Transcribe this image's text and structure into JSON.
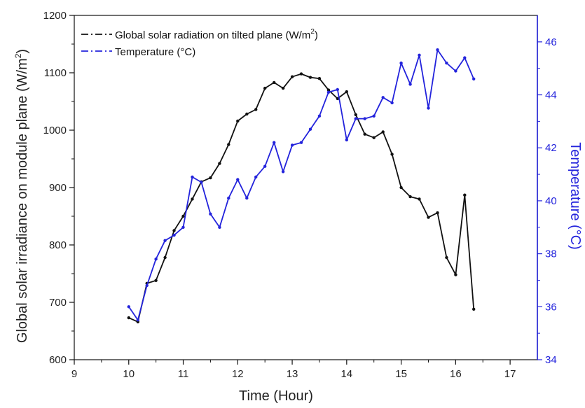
{
  "chart_data": {
    "type": "line",
    "title": "",
    "xlabel": "Time (Hour)",
    "ylabel_left": {
      "text": "Global solar irradiance on module plane (W/m",
      "sup": "2",
      "close": ")"
    },
    "ylabel_right": "Temperature (°C)",
    "xlim": [
      9,
      17.5
    ],
    "ylim_left": [
      600,
      1200
    ],
    "ylim_right": [
      34,
      47
    ],
    "x_ticks": [
      "9",
      "10",
      "11",
      "12",
      "13",
      "14",
      "15",
      "16",
      "17"
    ],
    "y_left_ticks": [
      "600",
      "700",
      "800",
      "900",
      "1000",
      "1100",
      "1200"
    ],
    "y_right_ticks": [
      "34",
      "36",
      "38",
      "40",
      "42",
      "44",
      "46"
    ],
    "grid": false,
    "legend_position": "top-left",
    "colors": {
      "irradiance": "#111111",
      "temperature": "#2323dc",
      "right_axis": "#2323dc",
      "left_axis": "#111111"
    },
    "series": [
      {
        "key": "irradiance",
        "name": "Global solar radiation on tilted plane (W/m",
        "name_sup": "2",
        "name_close": ")",
        "axis": "left",
        "x": [
          10.0,
          10.167,
          10.333,
          10.5,
          10.667,
          10.833,
          11.0,
          11.167,
          11.333,
          11.5,
          11.667,
          11.833,
          12.0,
          12.167,
          12.333,
          12.5,
          12.667,
          12.833,
          13.0,
          13.167,
          13.333,
          13.5,
          13.667,
          13.833,
          14.0,
          14.167,
          14.333,
          14.5,
          14.667,
          14.833,
          15.0,
          15.167,
          15.333,
          15.5,
          15.667,
          15.833,
          16.0,
          16.167,
          16.333
        ],
        "y": [
          673,
          666,
          733,
          738,
          778,
          825,
          850,
          880,
          910,
          917,
          942,
          975,
          1016,
          1028,
          1036,
          1073,
          1083,
          1073,
          1093,
          1098,
          1092,
          1090,
          1070,
          1055,
          1067,
          1027,
          993,
          987,
          997,
          958,
          900,
          884,
          880,
          848,
          856,
          778,
          748,
          887,
          688
        ]
      },
      {
        "key": "temperature",
        "name": "Temperature (°C)",
        "axis": "right",
        "x": [
          10.0,
          10.167,
          10.333,
          10.5,
          10.667,
          10.833,
          11.0,
          11.167,
          11.333,
          11.5,
          11.667,
          11.833,
          12.0,
          12.167,
          12.333,
          12.5,
          12.667,
          12.833,
          13.0,
          13.167,
          13.333,
          13.5,
          13.667,
          13.833,
          14.0,
          14.167,
          14.333,
          14.5,
          14.667,
          14.833,
          15.0,
          15.167,
          15.333,
          15.5,
          15.667,
          15.833,
          16.0,
          16.167,
          16.333
        ],
        "y": [
          36.0,
          35.5,
          36.8,
          37.8,
          38.5,
          38.7,
          39.0,
          40.9,
          40.7,
          39.5,
          39.0,
          40.1,
          40.8,
          40.1,
          40.9,
          41.3,
          42.2,
          41.1,
          42.1,
          42.2,
          42.7,
          43.2,
          44.1,
          44.2,
          42.3,
          43.1,
          43.1,
          43.2,
          43.9,
          43.7,
          45.2,
          44.4,
          45.5,
          43.5,
          45.7,
          45.2,
          44.9,
          45.4,
          44.6
        ]
      }
    ]
  }
}
